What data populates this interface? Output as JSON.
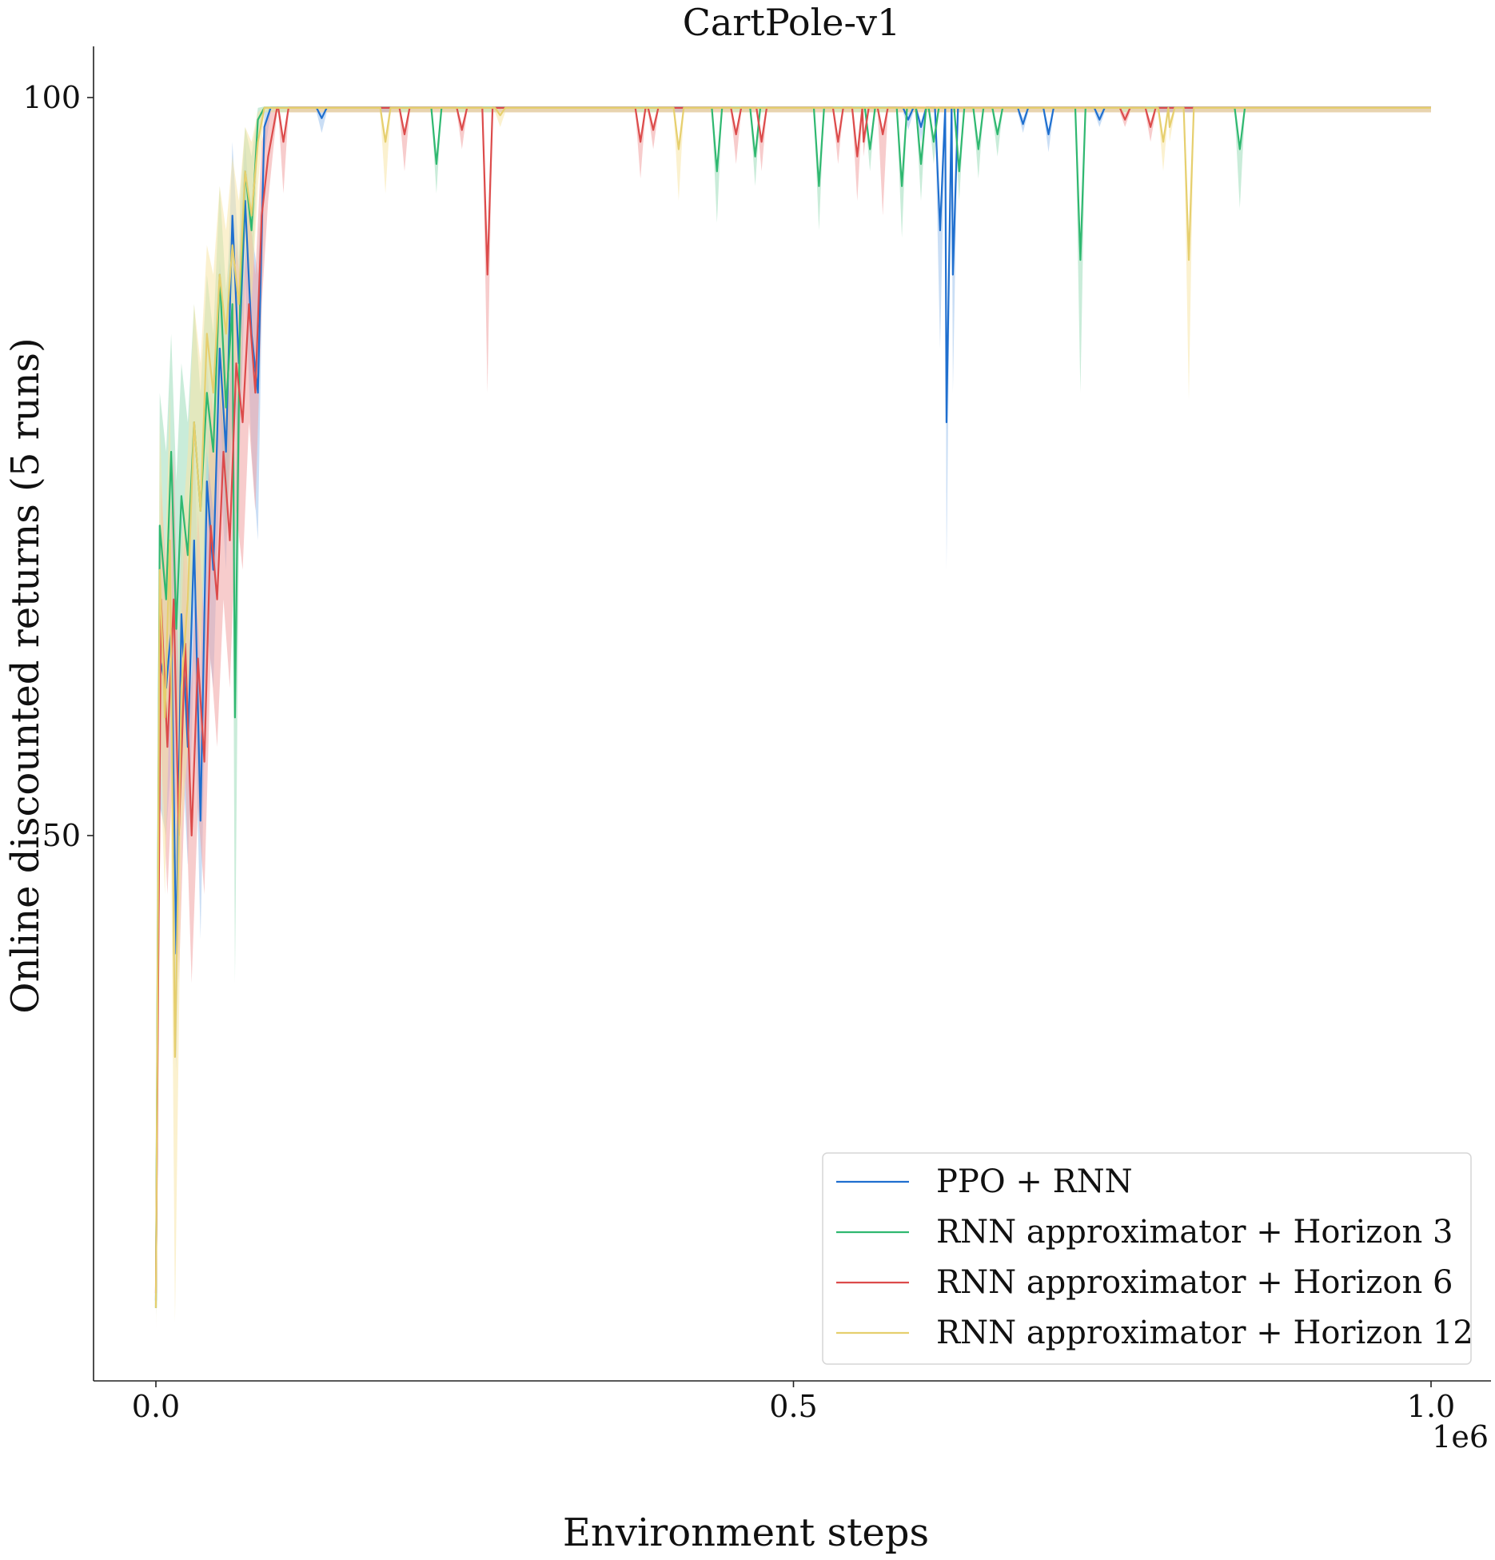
{
  "chart_data": {
    "type": "line",
    "title": "CartPole-v1",
    "xlabel": "Environment steps",
    "ylabel": "Online discounted returns (5 runs)",
    "x_offset_label": "1e6",
    "xlim": [
      -0.05,
      1.05
    ],
    "ylim": [
      15,
      103.5
    ],
    "x_ticks": [
      0.0,
      0.5,
      1.0
    ],
    "x_tick_labels": [
      "0.0",
      "0.5",
      "1.0"
    ],
    "y_ticks": [
      50,
      100
    ],
    "y_tick_labels": [
      "50",
      "100"
    ],
    "grid": false,
    "legend_position": "lower-right",
    "series": [
      {
        "name": "PPO + RNN",
        "color": "#1f6fcf",
        "fill": "#9ec2ec",
        "spikes": [
          [
            0.13,
            98.6,
            97.6
          ],
          [
            0.59,
            98.5,
            97.8
          ],
          [
            0.6,
            98.0,
            97.0
          ],
          [
            0.615,
            91.0,
            83.0
          ],
          [
            0.62,
            78.0,
            68.0
          ],
          [
            0.625,
            88.0,
            80.0
          ],
          [
            0.68,
            98.2,
            97.6
          ],
          [
            0.7,
            97.5,
            96.3
          ],
          [
            0.74,
            98.5,
            98.0
          ]
        ],
        "early": [
          [
            0.0,
            18.5,
            17.5,
            19.5
          ],
          [
            0.003,
            62.0,
            52.0,
            70.0
          ],
          [
            0.008,
            60.0,
            50.0,
            68.0
          ],
          [
            0.012,
            64.0,
            55.0,
            72.0
          ],
          [
            0.016,
            42.0,
            34.0,
            52.0
          ],
          [
            0.02,
            65.0,
            57.0,
            72.0
          ],
          [
            0.025,
            56.0,
            48.0,
            64.0
          ],
          [
            0.03,
            70.0,
            62.0,
            78.0
          ],
          [
            0.035,
            51.0,
            43.0,
            60.0
          ],
          [
            0.04,
            74.0,
            64.0,
            82.0
          ],
          [
            0.045,
            68.0,
            60.0,
            76.0
          ],
          [
            0.05,
            83.0,
            75.0,
            89.0
          ],
          [
            0.055,
            76.0,
            68.0,
            84.0
          ],
          [
            0.06,
            92.0,
            85.0,
            97.0
          ],
          [
            0.065,
            82.0,
            74.0,
            89.0
          ],
          [
            0.07,
            93.0,
            88.0,
            97.0
          ],
          [
            0.075,
            84.0,
            76.0,
            91.0
          ],
          [
            0.08,
            80.0,
            70.0,
            88.0
          ],
          [
            0.085,
            98.0,
            96.0,
            99.0
          ],
          [
            0.09,
            99.3,
            99.0,
            99.4
          ]
        ]
      },
      {
        "name": "RNN approximator + Horizon 3",
        "color": "#2fb870",
        "fill": "#9cdcb9",
        "spikes": [
          [
            0.22,
            95.5,
            93.5
          ],
          [
            0.44,
            95.0,
            91.5
          ],
          [
            0.47,
            96.0,
            94.0
          ],
          [
            0.52,
            94.0,
            91.0
          ],
          [
            0.56,
            96.5,
            95.0
          ],
          [
            0.585,
            94.0,
            90.5
          ],
          [
            0.6,
            95.5,
            93.0
          ],
          [
            0.61,
            97.0,
            95.5
          ],
          [
            0.63,
            95.0,
            93.0
          ],
          [
            0.645,
            96.5,
            94.5
          ],
          [
            0.66,
            97.5,
            96.0
          ],
          [
            0.725,
            89.0,
            80.0
          ],
          [
            0.85,
            96.5,
            92.5
          ]
        ],
        "early": [
          [
            0.0,
            18.0,
            17.0,
            19.0
          ],
          [
            0.003,
            71.0,
            60.0,
            80.0
          ],
          [
            0.008,
            66.0,
            56.0,
            76.0
          ],
          [
            0.012,
            76.0,
            66.0,
            84.0
          ],
          [
            0.016,
            64.0,
            54.0,
            74.0
          ],
          [
            0.02,
            73.0,
            63.0,
            82.0
          ],
          [
            0.025,
            69.0,
            60.0,
            78.0
          ],
          [
            0.03,
            78.0,
            70.0,
            86.0
          ],
          [
            0.035,
            72.0,
            63.0,
            80.0
          ],
          [
            0.04,
            80.0,
            72.0,
            88.0
          ],
          [
            0.045,
            76.0,
            68.0,
            84.0
          ],
          [
            0.05,
            88.0,
            80.0,
            94.0
          ],
          [
            0.055,
            79.0,
            70.0,
            87.0
          ],
          [
            0.06,
            86.0,
            78.0,
            92.0
          ],
          [
            0.062,
            58.0,
            40.0,
            70.0
          ],
          [
            0.066,
            86.0,
            78.0,
            93.0
          ],
          [
            0.07,
            95.0,
            91.0,
            98.0
          ],
          [
            0.075,
            91.0,
            86.0,
            96.0
          ],
          [
            0.08,
            98.5,
            97.0,
            99.3
          ],
          [
            0.085,
            99.3,
            99.0,
            99.4
          ]
        ]
      },
      {
        "name": "RNN approximator + Horizon 6",
        "color": "#dc4b4b",
        "fill": "#f0a3a3",
        "spikes": [
          [
            0.1,
            97.0,
            93.5
          ],
          [
            0.195,
            97.5,
            95.0
          ],
          [
            0.24,
            97.8,
            96.5
          ],
          [
            0.26,
            88.0,
            80.0
          ],
          [
            0.38,
            97.0,
            94.5
          ],
          [
            0.39,
            97.8,
            96.5
          ],
          [
            0.455,
            97.5,
            95.5
          ],
          [
            0.475,
            97.0,
            95.0
          ],
          [
            0.535,
            97.0,
            95.5
          ],
          [
            0.55,
            96.0,
            93.0
          ],
          [
            0.555,
            97.0,
            96.0
          ],
          [
            0.57,
            97.5,
            92.0
          ],
          [
            0.76,
            98.5,
            98.0
          ],
          [
            0.78,
            98.0,
            97.0
          ]
        ],
        "early": [
          [
            0.0,
            19.0,
            17.5,
            20.5
          ],
          [
            0.004,
            66.0,
            56.0,
            74.0
          ],
          [
            0.009,
            56.0,
            46.0,
            66.0
          ],
          [
            0.014,
            66.0,
            56.0,
            76.0
          ],
          [
            0.018,
            50.0,
            40.0,
            60.0
          ],
          [
            0.023,
            63.0,
            54.0,
            72.0
          ],
          [
            0.028,
            50.0,
            40.0,
            60.0
          ],
          [
            0.033,
            62.0,
            52.0,
            72.0
          ],
          [
            0.038,
            55.0,
            46.0,
            64.0
          ],
          [
            0.043,
            71.0,
            62.0,
            80.0
          ],
          [
            0.048,
            66.0,
            56.0,
            76.0
          ],
          [
            0.053,
            76.0,
            66.0,
            84.0
          ],
          [
            0.058,
            70.0,
            60.0,
            80.0
          ],
          [
            0.063,
            82.0,
            72.0,
            90.0
          ],
          [
            0.068,
            78.0,
            68.0,
            86.0
          ],
          [
            0.073,
            86.0,
            78.0,
            93.0
          ],
          [
            0.078,
            80.0,
            72.0,
            88.0
          ],
          [
            0.083,
            92.0,
            86.0,
            97.0
          ],
          [
            0.088,
            96.0,
            93.0,
            99.0
          ],
          [
            0.095,
            99.3,
            99.0,
            99.4
          ]
        ]
      },
      {
        "name": "RNN approximator + Horizon 12",
        "color": "#e6cf6e",
        "fill": "#f7e6a8",
        "spikes": [
          [
            0.18,
            97.0,
            93.5
          ],
          [
            0.27,
            98.8,
            98.0
          ],
          [
            0.41,
            96.5,
            93.0
          ],
          [
            0.79,
            97.0,
            95.0
          ],
          [
            0.795,
            98.0,
            97.0
          ],
          [
            0.81,
            89.0,
            79.5
          ]
        ],
        "early": [
          [
            0.0,
            18.0,
            16.5,
            19.5
          ],
          [
            0.003,
            68.0,
            56.0,
            78.0
          ],
          [
            0.007,
            58.0,
            46.0,
            68.0
          ],
          [
            0.011,
            70.0,
            60.0,
            80.0
          ],
          [
            0.015,
            35.0,
            17.0,
            50.0
          ],
          [
            0.02,
            60.0,
            50.0,
            70.0
          ],
          [
            0.025,
            66.0,
            56.0,
            76.0
          ],
          [
            0.03,
            78.0,
            68.0,
            86.0
          ],
          [
            0.035,
            72.0,
            62.0,
            82.0
          ],
          [
            0.04,
            84.0,
            76.0,
            90.0
          ],
          [
            0.045,
            80.0,
            72.0,
            88.0
          ],
          [
            0.05,
            88.0,
            80.0,
            94.0
          ],
          [
            0.055,
            84.0,
            76.0,
            91.0
          ],
          [
            0.06,
            90.0,
            84.0,
            96.0
          ],
          [
            0.065,
            86.0,
            78.0,
            93.0
          ],
          [
            0.07,
            95.0,
            90.0,
            98.0
          ],
          [
            0.075,
            92.0,
            86.0,
            97.0
          ],
          [
            0.08,
            97.0,
            94.0,
            99.0
          ],
          [
            0.085,
            99.3,
            99.0,
            99.4
          ]
        ]
      }
    ]
  }
}
